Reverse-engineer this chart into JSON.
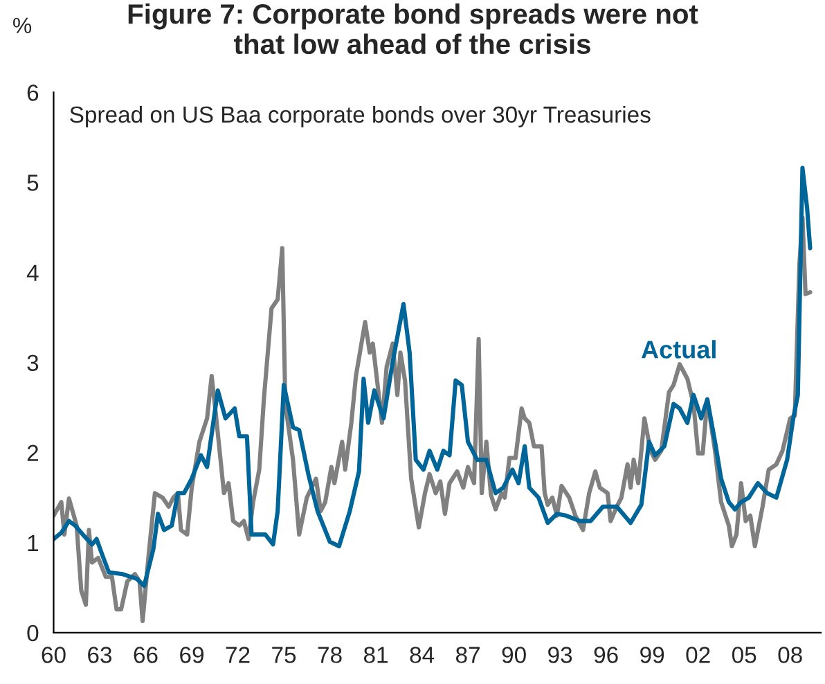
{
  "chart_data": {
    "type": "line",
    "title": "Figure 7: Corporate bond spreads were not\nthat low ahead of the crisis",
    "subtitle": "Spread on US Baa corporate bonds over 30yr Treasuries",
    "ylabel": "%",
    "xlim": [
      1960,
      2010
    ],
    "xticks": [
      {
        "value": 1960,
        "label": "60"
      },
      {
        "value": 1963,
        "label": "63"
      },
      {
        "value": 1966,
        "label": "66"
      },
      {
        "value": 1969,
        "label": "69"
      },
      {
        "value": 1972,
        "label": "72"
      },
      {
        "value": 1975,
        "label": "75"
      },
      {
        "value": 1978,
        "label": "78"
      },
      {
        "value": 1981,
        "label": "81"
      },
      {
        "value": 1984,
        "label": "84"
      },
      {
        "value": 1987,
        "label": "87"
      },
      {
        "value": 1990,
        "label": "90"
      },
      {
        "value": 1993,
        "label": "93"
      },
      {
        "value": 1996,
        "label": "96"
      },
      {
        "value": 1999,
        "label": "99"
      },
      {
        "value": 2002,
        "label": "02"
      },
      {
        "value": 2005,
        "label": "05"
      },
      {
        "value": 2008,
        "label": "08"
      }
    ],
    "ylim": [
      0,
      6
    ],
    "yticks": [
      0,
      1,
      2,
      3,
      4,
      5,
      6
    ],
    "grid": false,
    "legend": false,
    "series": [
      {
        "color": "#808080",
        "x": [
          1960,
          1960.5,
          1960.7,
          1961,
          1961.5,
          1961.8,
          1962.1,
          1962.3,
          1962.5,
          1962.9,
          1963.4,
          1963.8,
          1964.1,
          1964.4,
          1964.8,
          1965.3,
          1965.6,
          1965.8,
          1966.2,
          1966.6,
          1967.1,
          1967.5,
          1967.8,
          1968.1,
          1968.3,
          1968.7,
          1969,
          1969.5,
          1970,
          1970.3,
          1970.6,
          1971.1,
          1971.4,
          1971.7,
          1972.1,
          1972.4,
          1972.7,
          1973,
          1973.4,
          1973.7,
          1974.2,
          1974.6,
          1974.9,
          1975.1,
          1975.6,
          1976,
          1976.5,
          1977.1,
          1977.4,
          1977.7,
          1978.1,
          1978.3,
          1978.8,
          1979,
          1979.4,
          1979.7,
          1980.3,
          1980.6,
          1980.8,
          1981.4,
          1981.7,
          1982.1,
          1982.4,
          1982.6,
          1982.9,
          1983.3,
          1983.8,
          1984.2,
          1984.5,
          1984.9,
          1985.2,
          1985.5,
          1985.8,
          1986.3,
          1986.7,
          1987,
          1987.4,
          1987.7,
          1987.9,
          1988.2,
          1988.5,
          1988.8,
          1989.2,
          1989.4,
          1989.7,
          1990.1,
          1990.5,
          1990.7,
          1991,
          1991.3,
          1991.8,
          1992,
          1992.2,
          1992.5,
          1992.8,
          1993.1,
          1993.6,
          1994,
          1994.5,
          1994.9,
          1995.3,
          1995.6,
          1996.1,
          1996.3,
          1996.7,
          1997,
          1997.4,
          1997.6,
          1997.8,
          1998.1,
          1998.5,
          1998.9,
          1999.2,
          1999.6,
          2000.1,
          2000.4,
          2000.8,
          2001.3,
          2001.7,
          2002,
          2002.3,
          2002.6,
          2003.1,
          2003.5,
          2004,
          2004.2,
          2004.5,
          2004.8,
          2005.1,
          2005.4,
          2005.7,
          2006.2,
          2006.6,
          2007.1,
          2007.5,
          2008,
          2008.3,
          2008.6,
          2008.8,
          2009,
          2009.3
        ],
        "values": [
          1.3,
          1.45,
          1.09,
          1.49,
          1.19,
          0.47,
          0.31,
          1.14,
          0.78,
          0.83,
          0.62,
          0.62,
          0.26,
          0.26,
          0.57,
          0.65,
          0.57,
          0.13,
          0.88,
          1.55,
          1.5,
          1.4,
          1.5,
          1.55,
          1.14,
          1.09,
          1.61,
          2.12,
          2.38,
          2.85,
          2.38,
          1.55,
          1.66,
          1.24,
          1.19,
          1.24,
          1.04,
          1.45,
          1.81,
          2.59,
          3.6,
          3.7,
          4.27,
          2.54,
          1.92,
          1.09,
          1.5,
          1.71,
          1.35,
          1.45,
          1.84,
          1.66,
          2.12,
          1.81,
          2.33,
          2.85,
          3.45,
          3.11,
          3.21,
          2.33,
          2.95,
          3.21,
          2.64,
          3.11,
          2.8,
          1.71,
          1.17,
          1.55,
          1.76,
          1.55,
          1.68,
          1.32,
          1.66,
          1.79,
          1.61,
          1.84,
          1.66,
          3.26,
          1.55,
          2.12,
          1.53,
          1.37,
          1.55,
          1.5,
          1.94,
          1.94,
          2.49,
          2.38,
          2.33,
          2.07,
          2.07,
          1.55,
          1.42,
          1.5,
          1.3,
          1.63,
          1.5,
          1.3,
          1.14,
          1.55,
          1.79,
          1.61,
          1.55,
          1.24,
          1.4,
          1.5,
          1.87,
          1.61,
          1.92,
          1.66,
          2.38,
          2.02,
          1.92,
          2.02,
          2.67,
          2.75,
          2.98,
          2.82,
          2.54,
          1.99,
          1.99,
          2.59,
          2.02,
          1.45,
          1.19,
          0.96,
          1.09,
          1.66,
          1.24,
          1.3,
          0.96,
          1.4,
          1.81,
          1.87,
          2.02,
          2.38,
          2.41,
          4.09,
          4.61,
          3.76,
          3.78
        ]
      },
      {
        "name": "Actual",
        "color": "#006699",
        "x": [
          1960,
          1960.5,
          1961,
          1961.4,
          1961.9,
          1962.5,
          1962.8,
          1963.2,
          1963.6,
          1964.5,
          1965.4,
          1965.9,
          1966.5,
          1966.8,
          1967.2,
          1967.7,
          1968.1,
          1968.5,
          1969,
          1969.6,
          1970,
          1970.7,
          1971.2,
          1971.8,
          1972.1,
          1972.6,
          1972.9,
          1973.8,
          1974.3,
          1974.6,
          1975,
          1975.6,
          1976,
          1976.6,
          1977.2,
          1978,
          1978.6,
          1979.3,
          1979.9,
          1980.2,
          1980.5,
          1980.9,
          1981.5,
          1982.1,
          1982.8,
          1983.2,
          1983.6,
          1984.1,
          1984.5,
          1985,
          1985.4,
          1985.8,
          1986.2,
          1986.6,
          1987,
          1987.6,
          1988.2,
          1988.8,
          1989.3,
          1989.9,
          1990.3,
          1990.7,
          1991,
          1991.6,
          1992.2,
          1992.8,
          1993.4,
          1994.3,
          1995,
          1995.8,
          1996.7,
          1997.6,
          1998.3,
          1998.8,
          1999.2,
          1999.8,
          2000.4,
          2000.8,
          2001.3,
          2001.7,
          2002.2,
          2002.6,
          2003.1,
          2003.5,
          2004,
          2004.4,
          2004.8,
          2005.3,
          2005.9,
          2006.5,
          2007.1,
          2007.8,
          2008.2,
          2008.5,
          2008.8,
          2009.1,
          2009.3
        ],
        "values": [
          1.04,
          1.11,
          1.24,
          1.19,
          1.09,
          0.98,
          1.04,
          0.85,
          0.67,
          0.65,
          0.6,
          0.52,
          0.93,
          1.32,
          1.14,
          1.19,
          1.55,
          1.55,
          1.71,
          1.97,
          1.84,
          2.69,
          2.38,
          2.49,
          2.18,
          2.18,
          1.09,
          1.09,
          0.98,
          1.35,
          2.75,
          2.28,
          2.25,
          1.76,
          1.35,
          1.01,
          0.96,
          1.35,
          1.79,
          2.82,
          2.33,
          2.69,
          2.38,
          3.01,
          3.65,
          3.11,
          1.92,
          1.81,
          2.02,
          1.81,
          2.02,
          1.97,
          2.8,
          2.75,
          2.12,
          1.92,
          1.92,
          1.55,
          1.61,
          1.81,
          1.66,
          2.07,
          1.61,
          1.5,
          1.22,
          1.32,
          1.3,
          1.24,
          1.24,
          1.4,
          1.4,
          1.22,
          1.42,
          2.12,
          1.97,
          2.07,
          2.54,
          2.49,
          2.33,
          2.64,
          2.38,
          2.59,
          2.12,
          1.71,
          1.45,
          1.37,
          1.45,
          1.5,
          1.66,
          1.55,
          1.5,
          1.92,
          2.38,
          2.64,
          5.16,
          4.72,
          4.27
        ]
      }
    ]
  }
}
